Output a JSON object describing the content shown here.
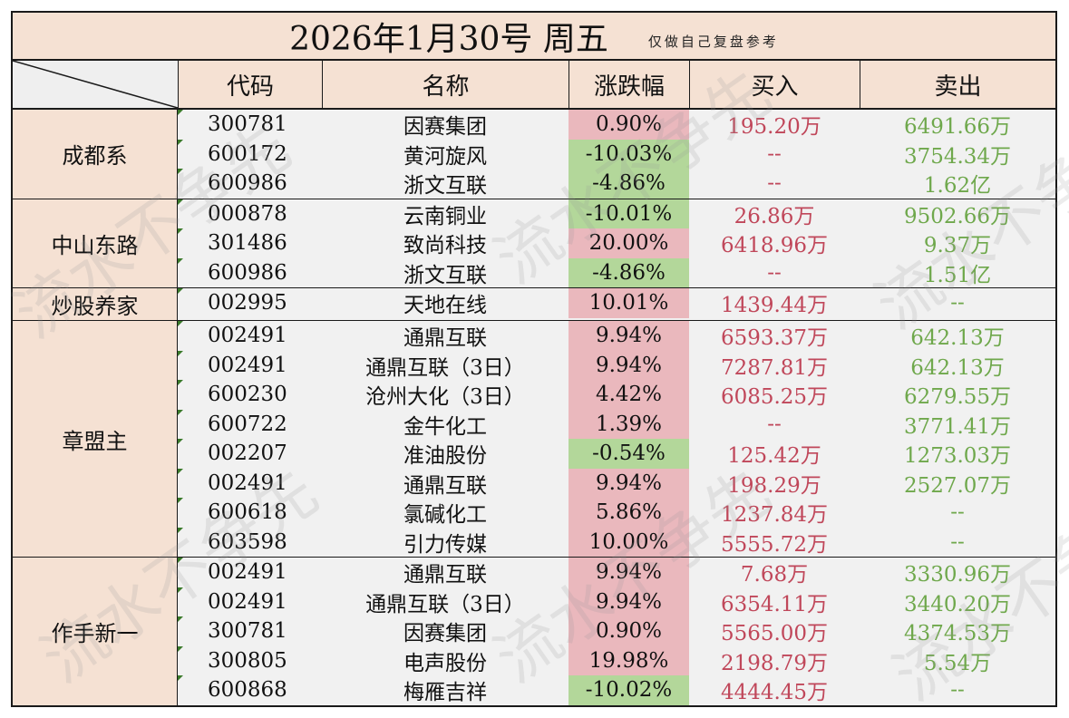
{
  "title": {
    "main": "2026年1月30号  周五",
    "sub": "仅做自己复盘参考"
  },
  "headers": [
    "代码",
    "名称",
    "涨跌幅",
    "买入",
    "卖出"
  ],
  "colors": {
    "header_bg": "#f5e1d3",
    "up_bg": "#eab8bd",
    "down_bg": "#b3d79a",
    "buy_text": "#c0475a",
    "sell_text": "#6fa84c"
  },
  "watermark": "流水不争先",
  "groups": [
    {
      "name": "成都系",
      "rows": [
        {
          "code": "300781",
          "name": "因赛集团",
          "pct": "0.90%",
          "dir": "up",
          "buy": "195.20万",
          "sell": "6491.66万"
        },
        {
          "code": "600172",
          "name": "黄河旋风",
          "pct": "-10.03%",
          "dir": "down",
          "buy": "--",
          "sell": "3754.34万"
        },
        {
          "code": "600986",
          "name": "浙文互联",
          "pct": "-4.86%",
          "dir": "down",
          "buy": "--",
          "sell": "1.62亿"
        }
      ]
    },
    {
      "name": "中山东路",
      "rows": [
        {
          "code": "000878",
          "name": "云南铜业",
          "pct": "-10.01%",
          "dir": "down",
          "buy": "26.86万",
          "sell": "9502.66万"
        },
        {
          "code": "301486",
          "name": "致尚科技",
          "pct": "20.00%",
          "dir": "up",
          "buy": "6418.96万",
          "sell": "9.37万"
        },
        {
          "code": "600986",
          "name": "浙文互联",
          "pct": "-4.86%",
          "dir": "down",
          "buy": "--",
          "sell": "1.51亿"
        }
      ]
    },
    {
      "name": "炒股养家",
      "rows": [
        {
          "code": "002995",
          "name": "天地在线",
          "pct": "10.01%",
          "dir": "up",
          "buy": "1439.44万",
          "sell": "--"
        }
      ]
    },
    {
      "name": "章盟主",
      "rows": [
        {
          "code": "002491",
          "name": "通鼎互联",
          "pct": "9.94%",
          "dir": "up",
          "buy": "6593.37万",
          "sell": "642.13万"
        },
        {
          "code": "002491",
          "name": "通鼎互联（3日）",
          "pct": "9.94%",
          "dir": "up",
          "buy": "7287.81万",
          "sell": "642.13万"
        },
        {
          "code": "600230",
          "name": "沧州大化（3日）",
          "pct": "4.42%",
          "dir": "up",
          "buy": "6085.25万",
          "sell": "6279.55万"
        },
        {
          "code": "600722",
          "name": "金牛化工",
          "pct": "1.39%",
          "dir": "up",
          "buy": "--",
          "sell": "3771.41万"
        },
        {
          "code": "002207",
          "name": "准油股份",
          "pct": "-0.54%",
          "dir": "down",
          "buy": "125.42万",
          "sell": "1273.03万"
        },
        {
          "code": "002491",
          "name": "通鼎互联",
          "pct": "9.94%",
          "dir": "up",
          "buy": "198.29万",
          "sell": "2527.07万"
        },
        {
          "code": "600618",
          "name": "氯碱化工",
          "pct": "5.86%",
          "dir": "up",
          "buy": "1237.84万",
          "sell": "--"
        },
        {
          "code": "603598",
          "name": "引力传媒",
          "pct": "10.00%",
          "dir": "up",
          "buy": "5555.72万",
          "sell": "--"
        }
      ]
    },
    {
      "name": "作手新一",
      "rows": [
        {
          "code": "002491",
          "name": "通鼎互联",
          "pct": "9.94%",
          "dir": "up",
          "buy": "7.68万",
          "sell": "3330.96万"
        },
        {
          "code": "002491",
          "name": "通鼎互联（3日）",
          "pct": "9.94%",
          "dir": "up",
          "buy": "6354.11万",
          "sell": "3440.20万"
        },
        {
          "code": "300781",
          "name": "因赛集团",
          "pct": "0.90%",
          "dir": "up",
          "buy": "5565.00万",
          "sell": "4374.53万"
        },
        {
          "code": "300805",
          "name": "电声股份",
          "pct": "19.98%",
          "dir": "up",
          "buy": "2198.79万",
          "sell": "5.54万"
        },
        {
          "code": "600868",
          "name": "梅雁吉祥",
          "pct": "-10.02%",
          "dir": "down",
          "buy": "4444.45万",
          "sell": "--"
        }
      ]
    }
  ]
}
